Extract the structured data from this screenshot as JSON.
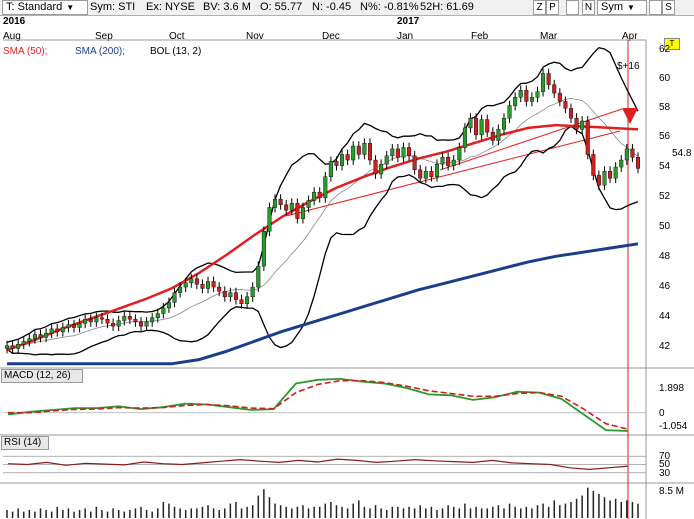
{
  "toolbar": {
    "template": "T: Standard",
    "symbol": "Sym: STI",
    "exchange": "Ex: NYSE",
    "bv": "BV: 3.6 M",
    "open": "O: 55.77",
    "net": "N: -0.45",
    "net_pct": "N%: -0.81%",
    "high52": "52H: 61.69",
    "btn_z": "Z",
    "btn_p": "P",
    "btn_n": "N",
    "sym_select": "Sym",
    "btn_s": "S"
  },
  "chart_data": {
    "type": "candlestick",
    "title": "",
    "years": [
      "2016",
      "2017"
    ],
    "months": [
      "Aug",
      "Sep",
      "Oct",
      "Nov",
      "Dec",
      "Jan",
      "Feb",
      "Mar",
      "Apr"
    ],
    "y_ticks": [
      "62",
      "60",
      "58",
      "56",
      "54",
      "52",
      "50",
      "48",
      "46",
      "44",
      "42"
    ],
    "ylim": [
      40.5,
      64
    ],
    "price_label": "$+16",
    "last_price": "54.8",
    "last_price_value": 54.8,
    "indicators": {
      "sma50": "SMA (50);",
      "sma200": "SMA (200);",
      "bollinger": "BOL (13, 2)"
    },
    "colors": {
      "sma50": "#e02020",
      "sma200": "#1a3e8c",
      "up": "#2a9a2a",
      "down": "#cc2020",
      "band": "#000000"
    },
    "close": [
      42.1,
      41.9,
      42.2,
      42.4,
      42.6,
      42.9,
      42.7,
      43.0,
      43.3,
      43.1,
      43.4,
      43.6,
      43.4,
      43.7,
      44.0,
      43.8,
      44.1,
      44.0,
      43.7,
      43.5,
      43.9,
      44.2,
      44.0,
      43.8,
      43.5,
      43.8,
      44.1,
      44.4,
      44.8,
      45.2,
      45.9,
      46.3,
      46.6,
      46.9,
      46.5,
      46.2,
      46.7,
      46.3,
      46.0,
      45.6,
      45.9,
      45.4,
      45.1,
      45.6,
      46.3,
      47.8,
      50.3,
      52.0,
      52.6,
      52.2,
      51.8,
      52.3,
      51.2,
      52.0,
      52.5,
      53.1,
      52.7,
      54.2,
      55.3,
      55.0,
      55.8,
      55.4,
      56.4,
      55.8,
      56.6,
      55.4,
      54.4,
      55.1,
      55.7,
      56.2,
      55.6,
      56.3,
      55.7,
      54.7,
      54.1,
      54.6,
      54.2,
      55.1,
      55.6,
      55.0,
      55.4,
      56.3,
      57.7,
      58.4,
      57.2,
      58.3,
      57.4,
      56.8,
      57.6,
      58.4,
      59.3,
      59.9,
      60.4,
      59.6,
      59.9,
      60.3,
      61.6,
      60.8,
      60.2,
      59.6,
      59.1,
      58.4,
      57.6,
      58.2,
      55.8,
      54.3,
      53.6,
      54.6,
      54.1,
      54.9,
      55.4,
      56.2,
      55.6,
      54.8
    ],
    "sma50": [
      41.8,
      42.5,
      43.3,
      44.0,
      44.7,
      45.4,
      46.2,
      47.3,
      48.6,
      50.0,
      51.3,
      52.4,
      53.4,
      54.2,
      54.9,
      55.5,
      56.0,
      56.6,
      57.2,
      57.7,
      57.9,
      57.8,
      57.7,
      57.6
    ],
    "sma200": [
      40.8,
      40.8,
      40.8,
      40.8,
      40.8,
      40.8,
      40.8,
      41.1,
      41.7,
      42.4,
      43.1,
      43.7,
      44.3,
      44.9,
      45.5,
      46.1,
      46.6,
      47.1,
      47.6,
      48.1,
      48.5,
      48.8,
      49.1,
      49.4
    ],
    "macd": {
      "label": "MACD (12, 26)",
      "ticks": [
        "1.898",
        "0",
        "-1.054"
      ],
      "range": [
        -1.054,
        1.898
      ],
      "macd_line": [
        -0.1,
        0.05,
        0.15,
        0.25,
        0.25,
        0.35,
        0.2,
        0.3,
        0.5,
        0.45,
        0.3,
        0.15,
        0.2,
        1.6,
        1.8,
        1.85,
        1.7,
        1.6,
        1.35,
        1.0,
        0.95,
        0.7,
        0.85,
        1.15,
        1.1,
        0.75,
        -0.1,
        -0.95,
        -1.0
      ],
      "signal_line": [
        0.0,
        0.0,
        0.1,
        0.18,
        0.2,
        0.28,
        0.25,
        0.28,
        0.4,
        0.45,
        0.38,
        0.25,
        0.22,
        1.1,
        1.55,
        1.75,
        1.75,
        1.65,
        1.45,
        1.2,
        1.05,
        0.9,
        0.9,
        1.05,
        1.1,
        0.9,
        0.2,
        -0.6,
        -0.9
      ]
    },
    "rsi": {
      "label": "RSI (14)",
      "ticks": [
        "70",
        "50",
        "30"
      ],
      "values": [
        52,
        50,
        55,
        48,
        53,
        51,
        49,
        56,
        52,
        50,
        54,
        58,
        62,
        58,
        55,
        60,
        56,
        63,
        60,
        55,
        58,
        62,
        59,
        57,
        55,
        60,
        54,
        52,
        50,
        42,
        38,
        42,
        46
      ]
    },
    "volume": {
      "label": "8.5 M",
      "max_m": 8.5,
      "values": [
        0.25,
        0.2,
        0.3,
        0.2,
        0.25,
        0.2,
        0.3,
        0.25,
        0.2,
        0.35,
        0.25,
        0.3,
        0.2,
        0.25,
        0.3,
        0.2,
        0.35,
        0.25,
        0.2,
        0.3,
        0.25,
        0.2,
        0.25,
        0.3,
        0.35,
        0.25,
        0.2,
        0.3,
        0.5,
        0.45,
        0.35,
        0.3,
        0.25,
        0.3,
        0.3,
        0.35,
        0.4,
        0.3,
        0.25,
        0.3,
        0.45,
        0.5,
        0.3,
        0.35,
        0.4,
        0.7,
        0.9,
        0.65,
        0.45,
        0.4,
        0.35,
        0.3,
        0.35,
        0.4,
        0.3,
        0.35,
        0.35,
        0.45,
        0.5,
        0.4,
        0.35,
        0.3,
        0.45,
        0.55,
        0.35,
        0.3,
        0.4,
        0.3,
        0.25,
        0.35,
        0.35,
        0.3,
        0.35,
        0.3,
        0.4,
        0.3,
        0.35,
        0.25,
        0.3,
        0.4,
        0.35,
        0.3,
        0.45,
        0.3,
        0.35,
        0.3,
        0.3,
        0.35,
        0.4,
        0.3,
        0.45,
        0.35,
        0.3,
        0.35,
        0.3,
        0.4,
        0.45,
        0.35,
        0.55,
        0.4,
        0.45,
        0.5,
        0.6,
        0.7,
        0.95,
        0.85,
        0.75,
        0.65,
        0.55,
        0.6,
        0.5,
        0.55,
        0.5,
        0.45
      ]
    }
  }
}
